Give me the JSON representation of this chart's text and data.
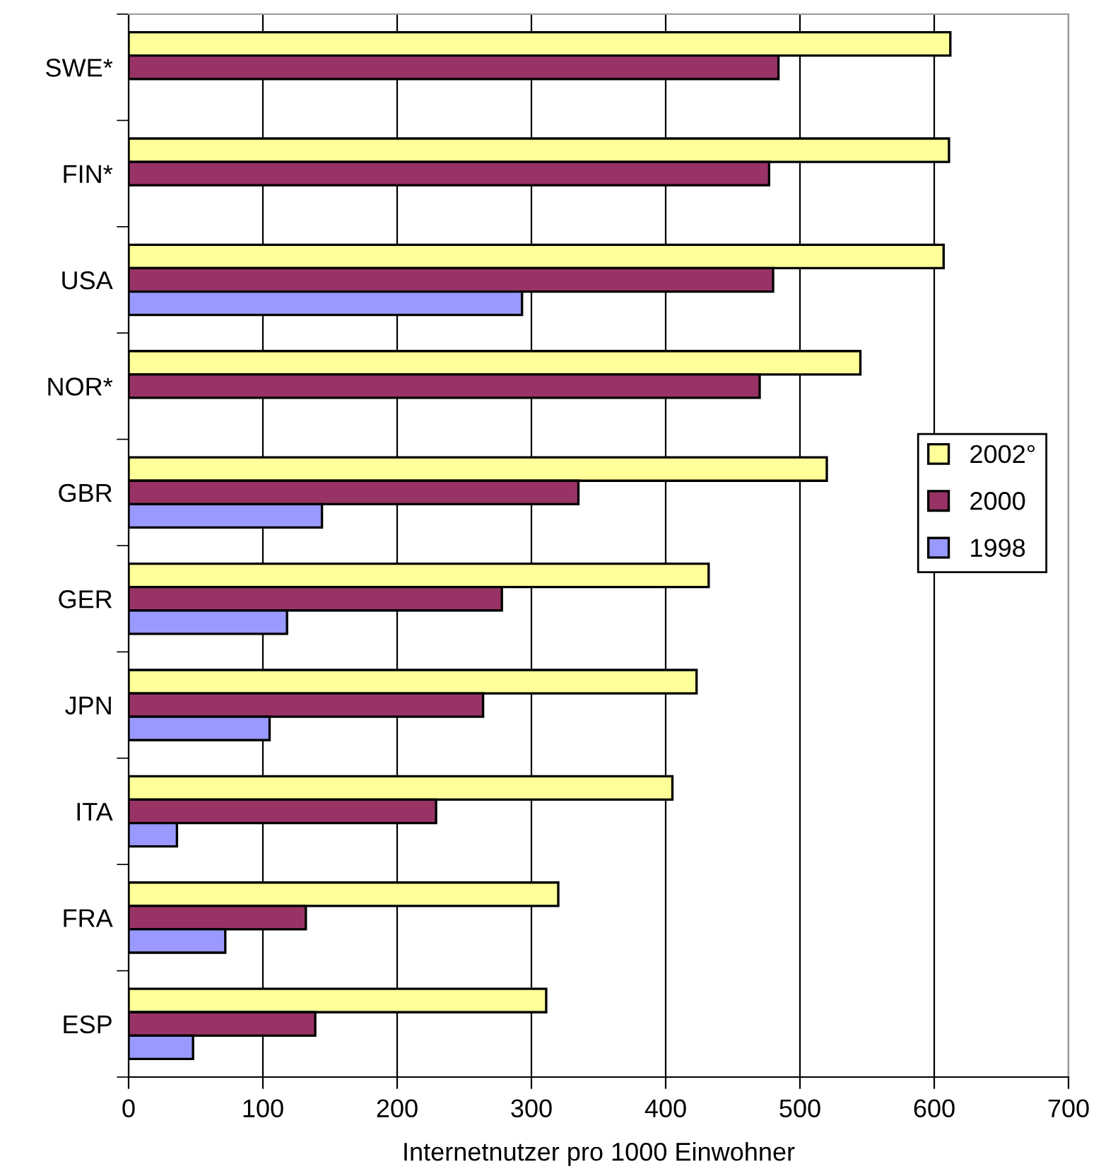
{
  "chart_data": {
    "type": "bar",
    "orientation": "horizontal",
    "xlabel": "Internetnutzer pro 1000 Einwohner",
    "categories": [
      "SWE*",
      "FIN*",
      "USA",
      "NOR*",
      "GBR",
      "GER",
      "JPN",
      "ITA",
      "FRA",
      "ESP"
    ],
    "series": [
      {
        "name": "2002°",
        "color": "#ffff99",
        "values": [
          612,
          611,
          607,
          545,
          520,
          432,
          423,
          405,
          320,
          311
        ]
      },
      {
        "name": "2000",
        "color": "#993366",
        "values": [
          484,
          477,
          480,
          470,
          335,
          278,
          264,
          229,
          132,
          139
        ]
      },
      {
        "name": "1998",
        "color": "#9999ff",
        "values": [
          null,
          null,
          293,
          null,
          144,
          118,
          105,
          36,
          72,
          48
        ]
      }
    ],
    "xlim": [
      0,
      700
    ],
    "xticks": [
      0,
      100,
      200,
      300,
      400,
      500,
      600,
      700
    ],
    "grid": "x",
    "legend": "right"
  }
}
